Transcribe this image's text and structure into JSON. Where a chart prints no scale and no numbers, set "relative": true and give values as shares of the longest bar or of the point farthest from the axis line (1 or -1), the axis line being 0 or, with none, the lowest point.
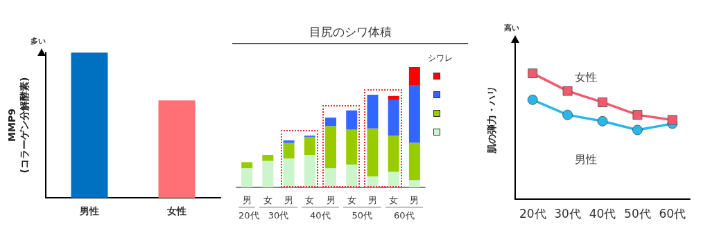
{
  "chart_data": [
    {
      "type": "bar",
      "relative": true,
      "ylabel": "MMP9\n(コラーゲン分解酵素)",
      "annotations": [
        "多い"
      ],
      "categories": [
        "男性",
        "女性"
      ],
      "values": [
        1,
        0.67
      ],
      "colors": [
        "#0070c0",
        "#ff6f75"
      ]
    },
    {
      "type": "bar",
      "stacked": true,
      "relative": true,
      "title": "目尻のシワ体積",
      "legend_title": "シワレ",
      "categories": [
        "男",
        "女",
        "男",
        "女",
        "男",
        "女",
        "男",
        "女",
        "男"
      ],
      "annotations": [
        "20代",
        "30代",
        "40代",
        "50代",
        "60代"
      ],
      "series": [
        {
          "color": "#ccf5cc",
          "values": [
            0.16,
            0.22,
            0.24,
            0.27,
            0.16,
            0.19,
            0.09,
            0.13,
            0.06
          ]
        },
        {
          "color": "#99cc00",
          "values": [
            0.05,
            0.05,
            0.13,
            0.15,
            0.35,
            0.29,
            0.4,
            0.3,
            0.31
          ]
        },
        {
          "color": "#3366ff",
          "values": [
            null,
            null,
            0.02,
            0.01,
            0.07,
            0.16,
            0.28,
            0.3,
            0.48
          ]
        },
        {
          "color": "#ff0000",
          "values": [
            null,
            null,
            null,
            null,
            null,
            null,
            null,
            0.03,
            0.15
          ]
        }
      ]
    },
    {
      "type": "line",
      "relative": true,
      "ylabel": "肌の弾力・ハリ",
      "annotations": [
        "高い"
      ],
      "categories": [
        "20代",
        "30代",
        "40代",
        "50代",
        "60代"
      ],
      "series": [
        {
          "name": "女性",
          "color": "#f05a6e",
          "marker": "square",
          "values": [
            1,
            0.86,
            0.77,
            0.67,
            0.63
          ]
        },
        {
          "name": "男性",
          "color": "#29b6e8",
          "marker": "circle",
          "values": [
            0.79,
            0.67,
            0.62,
            0.55,
            0.6
          ]
        }
      ]
    }
  ]
}
